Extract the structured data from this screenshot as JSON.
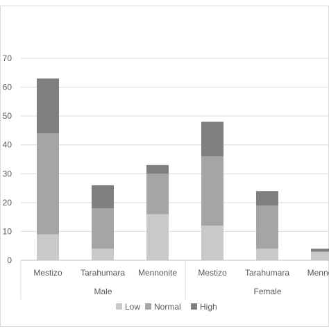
{
  "chart_data": {
    "type": "bar",
    "stacked": true,
    "ylim": [
      0,
      70
    ],
    "yticks": [
      0,
      10,
      20,
      30,
      40,
      50,
      60,
      70
    ],
    "grid": true,
    "legend_position": "bottom",
    "groups": [
      {
        "label": "Male",
        "categories": [
          "Mestizo",
          "Tarahumara",
          "Mennonite"
        ]
      },
      {
        "label": "Female",
        "categories": [
          "Mestizo",
          "Tarahumara",
          "Mennoc"
        ]
      }
    ],
    "series": [
      {
        "name": "Low",
        "color": "#c9c9c9",
        "values": [
          9,
          4,
          16,
          12,
          4,
          3
        ]
      },
      {
        "name": "Normal",
        "color": "#a5a5a5",
        "values": [
          35,
          14,
          14,
          24,
          15,
          0
        ]
      },
      {
        "name": "High",
        "color": "#7f7f7f",
        "values": [
          19,
          8,
          3,
          12,
          5,
          1
        ]
      }
    ]
  }
}
